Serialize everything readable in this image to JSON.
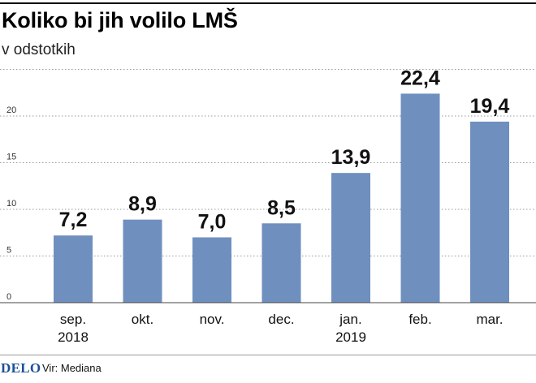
{
  "header": {
    "title": "Koliko bi jih volilo LMŠ",
    "subtitle": "v odstotkih"
  },
  "footer": {
    "logo": "DELO",
    "source": "Vir: Mediana"
  },
  "colors": {
    "bar": "#6f8fbf",
    "grid": "#9a9a9a",
    "logo": "#1c4f9c"
  },
  "chart_data": {
    "type": "bar",
    "categories": [
      [
        "sep.",
        "2018"
      ],
      [
        "okt."
      ],
      [
        "nov."
      ],
      [
        "dec."
      ],
      [
        "jan.",
        "2019"
      ],
      [
        "feb."
      ],
      [
        "mar."
      ]
    ],
    "values": [
      7.2,
      8.9,
      7.0,
      8.5,
      13.9,
      22.4,
      19.4
    ],
    "value_labels": [
      "7,2",
      "8,9",
      "7,0",
      "8,5",
      "13,9",
      "22,4",
      "19,4"
    ],
    "yticks": [
      0,
      5,
      10,
      15,
      20
    ],
    "ylim": [
      0,
      25
    ],
    "grid": true,
    "legend": "none"
  }
}
